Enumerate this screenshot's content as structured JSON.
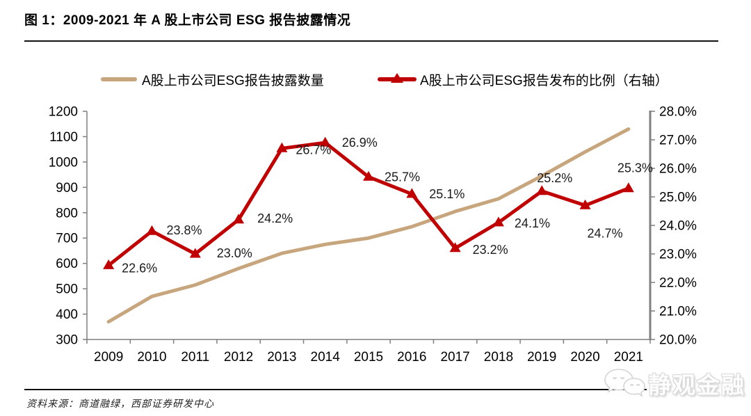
{
  "header": {
    "title": "图 1：2009-2021 年 A 股上市公司 ESG 报告披露情况"
  },
  "legend": {
    "items": [
      {
        "label": "A股上市公司ESG报告披露数量",
        "color": "#C7A57D",
        "marker": "line"
      },
      {
        "label": "A股上市公司ESG报告发布的比例（右轴）",
        "color": "#C00000",
        "marker": "line-triangle"
      }
    ]
  },
  "chart_data": {
    "type": "line",
    "title": "图 1：2009-2021 年 A 股上市公司 ESG 报告披露情况",
    "categories": [
      "2009",
      "2010",
      "2011",
      "2012",
      "2013",
      "2014",
      "2015",
      "2016",
      "2017",
      "2018",
      "2019",
      "2020",
      "2021"
    ],
    "series": [
      {
        "name": "A股上市公司ESG报告披露数量",
        "axis": "left",
        "color": "#C7A57D",
        "marker": "none",
        "values": [
          370,
          470,
          515,
          580,
          640,
          675,
          700,
          745,
          805,
          855,
          945,
          1040,
          1130
        ]
      },
      {
        "name": "A股上市公司ESG报告发布的比例（右轴）",
        "axis": "right",
        "color": "#C00000",
        "marker": "triangle",
        "values": [
          22.6,
          23.8,
          23.0,
          24.2,
          26.7,
          26.9,
          25.7,
          25.1,
          23.2,
          24.1,
          25.2,
          24.7,
          25.3
        ],
        "data_labels": [
          "22.6%",
          "23.8%",
          "23.0%",
          "24.2%",
          "26.7%",
          "26.9%",
          "25.7%",
          "25.1%",
          "23.2%",
          "24.1%",
          "25.2%",
          "24.7%",
          "25.3%"
        ],
        "label_offsets": [
          [
            19,
            10
          ],
          [
            21,
            5
          ],
          [
            31,
            5
          ],
          [
            27,
            4
          ],
          [
            20,
            8
          ],
          [
            24,
            6
          ],
          [
            23,
            6
          ],
          [
            25,
            6
          ],
          [
            25,
            8
          ],
          [
            23,
            7
          ],
          [
            -7,
            -13
          ],
          [
            3,
            46
          ],
          [
            -16,
            -23
          ]
        ]
      }
    ],
    "left_axis": {
      "min": 300,
      "max": 1200,
      "step": 100
    },
    "right_axis": {
      "min": 20.0,
      "max": 28.0,
      "step": 1.0,
      "suffix": "%",
      "decimals": 1
    },
    "grid": false,
    "legend_position": "top",
    "axis_color": "#7f7f7f"
  },
  "footer": {
    "source": "资料来源：商道融绿，西部证券研发中心"
  },
  "watermark": {
    "icon": "wechat-chat-bubbles-icon",
    "text": "静观金融"
  }
}
